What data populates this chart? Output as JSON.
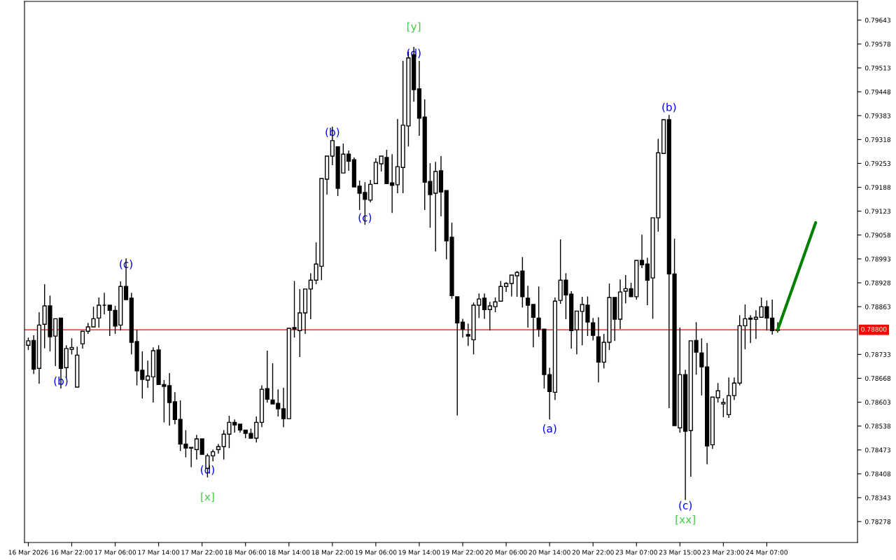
{
  "chart_data": {
    "type": "candlestick",
    "categories": [
      "16 Mar 2026",
      null,
      null,
      null,
      null,
      null,
      null,
      null,
      "16 Mar 22:00",
      null,
      null,
      null,
      null,
      null,
      null,
      null,
      "17 Mar 06:00",
      null,
      null,
      null,
      null,
      null,
      null,
      null,
      "17 Mar 14:00",
      null,
      null,
      null,
      null,
      null,
      null,
      null,
      "17 Mar 22:00",
      null,
      null,
      null,
      null,
      null,
      null,
      null,
      "18 Mar 06:00",
      null,
      null,
      null,
      null,
      null,
      null,
      null,
      "18 Mar 14:00",
      null,
      null,
      null,
      null,
      null,
      null,
      null,
      "18 Mar 22:00",
      null,
      null,
      null,
      null,
      null,
      null,
      null,
      "19 Mar 06:00",
      null,
      null,
      null,
      null,
      null,
      null,
      null,
      "19 Mar 14:00",
      null,
      null,
      null,
      null,
      null,
      null,
      null,
      "19 Mar 22:00",
      null,
      null,
      null,
      null,
      null,
      null,
      null,
      "20 Mar 06:00",
      null,
      null,
      null,
      null,
      null,
      null,
      null,
      "20 Mar 14:00",
      null,
      null,
      null,
      null,
      null,
      null,
      null,
      "20 Mar 22:00",
      null,
      null,
      null,
      null,
      null,
      null,
      null,
      "23 Mar 07:00",
      null,
      null,
      null,
      null,
      null,
      null,
      null,
      "23 Mar 15:00",
      null,
      null,
      null,
      null,
      null,
      null,
      null,
      "23 Mar 23:00",
      null,
      null,
      null,
      null,
      null,
      null,
      null,
      "24 Mar 07:00",
      null,
      null,
      null,
      null,
      null,
      null,
      null,
      null,
      null,
      null,
      null,
      null,
      null,
      null,
      null,
      null
    ],
    "ohlc": [
      [
        0.78758,
        0.78779,
        0.78745,
        0.7877
      ],
      [
        0.78771,
        0.78785,
        0.7868,
        0.78693
      ],
      [
        0.78695,
        0.78848,
        0.78653,
        0.78813
      ],
      [
        0.78815,
        0.78924,
        0.7875,
        0.78865
      ],
      [
        0.78865,
        0.78893,
        0.78741,
        0.78781
      ],
      [
        0.78783,
        0.78834,
        0.78701,
        0.7883
      ],
      [
        0.78832,
        0.78832,
        0.7864,
        0.78695
      ],
      [
        0.78697,
        0.78758,
        0.78668,
        0.78749
      ],
      [
        0.78747,
        0.78777,
        0.78733,
        0.78752
      ],
      [
        0.78644,
        0.78754,
        0.78644,
        0.78731
      ],
      [
        0.78762,
        0.78796,
        0.78749,
        0.78796
      ],
      [
        0.78796,
        0.78819,
        0.78789,
        0.78808
      ],
      [
        0.78808,
        0.78863,
        0.78806,
        0.7883
      ],
      [
        0.78832,
        0.78888,
        0.78806,
        0.78867
      ],
      [
        0.78867,
        0.78901,
        0.78842,
        0.78867
      ],
      [
        0.78867,
        0.78872,
        0.78783,
        0.78853
      ],
      [
        0.78853,
        0.78865,
        0.78789,
        0.7881
      ],
      [
        0.78813,
        0.78932,
        0.78798,
        0.78918
      ],
      [
        0.78918,
        0.78994,
        0.78878,
        0.78882
      ],
      [
        0.78886,
        0.78901,
        0.78733,
        0.78766
      ],
      [
        0.78768,
        0.788,
        0.78649,
        0.78688
      ],
      [
        0.7869,
        0.78741,
        0.78613,
        0.78665
      ],
      [
        0.78663,
        0.78716,
        0.78642,
        0.78674
      ],
      [
        0.78672,
        0.78752,
        0.78602,
        0.78743
      ],
      [
        0.78745,
        0.78758,
        0.78648,
        0.78651
      ],
      [
        0.78651,
        0.78663,
        0.78548,
        0.78646
      ],
      [
        0.78648,
        0.78682,
        0.78539,
        0.78602
      ],
      [
        0.78604,
        0.7863,
        0.78543,
        0.78556
      ],
      [
        0.78556,
        0.78608,
        0.7847,
        0.78489
      ],
      [
        0.78489,
        0.78527,
        0.78453,
        0.78478
      ],
      [
        0.78478,
        0.7848,
        0.78426,
        0.7848
      ],
      [
        0.78474,
        0.78514,
        0.78447,
        0.78503
      ],
      [
        0.78503,
        0.78508,
        0.78461,
        0.78461
      ],
      [
        0.78423,
        0.78463,
        0.78398,
        0.78457
      ],
      [
        0.78457,
        0.78474,
        0.78442,
        0.78468
      ],
      [
        0.78474,
        0.78489,
        0.78463,
        0.78482
      ],
      [
        0.78482,
        0.78527,
        0.78447,
        0.78516
      ],
      [
        0.78516,
        0.78566,
        0.78478,
        0.78548
      ],
      [
        0.78548,
        0.78556,
        0.7852,
        0.78541
      ],
      [
        0.78543,
        0.78548,
        0.7852,
        0.78527
      ],
      [
        0.78527,
        0.78527,
        0.78505,
        0.78518
      ],
      [
        0.78518,
        0.78531,
        0.78505,
        0.78505
      ],
      [
        0.78505,
        0.78564,
        0.78493,
        0.78548
      ],
      [
        0.78548,
        0.78649,
        0.78535,
        0.78638
      ],
      [
        0.7864,
        0.78743,
        0.78602,
        0.78611
      ],
      [
        0.78609,
        0.78709,
        0.78598,
        0.78598
      ],
      [
        0.786,
        0.78638,
        0.78564,
        0.78585
      ],
      [
        0.78585,
        0.78642,
        0.78535,
        0.78558
      ],
      [
        0.78558,
        0.78806,
        0.78558,
        0.78804
      ],
      [
        0.78806,
        0.78933,
        0.78779,
        0.78802
      ],
      [
        0.78798,
        0.78911,
        0.78726,
        0.78846
      ],
      [
        0.78846,
        0.78914,
        0.78789,
        0.78911
      ],
      [
        0.78911,
        0.78954,
        0.78829,
        0.78935
      ],
      [
        0.78935,
        0.79038,
        0.78924,
        0.78979
      ],
      [
        0.78973,
        0.79212,
        0.78935,
        0.79212
      ],
      [
        0.7921,
        0.79278,
        0.79168,
        0.79273
      ],
      [
        0.79273,
        0.79353,
        0.79248,
        0.79315
      ],
      [
        0.79298,
        0.79298,
        0.79164,
        0.79185
      ],
      [
        0.79227,
        0.79307,
        0.79227,
        0.79278
      ],
      [
        0.79278,
        0.79288,
        0.79233,
        0.79259
      ],
      [
        0.79263,
        0.79269,
        0.79189,
        0.79189
      ],
      [
        0.79191,
        0.79206,
        0.79126,
        0.79172
      ],
      [
        0.79174,
        0.79202,
        0.79086,
        0.79155
      ],
      [
        0.79153,
        0.79208,
        0.79147,
        0.79196
      ],
      [
        0.79198,
        0.79267,
        0.79198,
        0.79256
      ],
      [
        0.79252,
        0.79273,
        0.79231,
        0.79273
      ],
      [
        0.79269,
        0.7929,
        0.79198,
        0.79198
      ],
      [
        0.792,
        0.79278,
        0.79118,
        0.79193
      ],
      [
        0.79195,
        0.79374,
        0.79172,
        0.79244
      ],
      [
        0.79242,
        0.79532,
        0.79172,
        0.79357
      ],
      [
        0.79355,
        0.79557,
        0.79299,
        0.7954
      ],
      [
        0.79549,
        0.7957,
        0.79421,
        0.79454
      ],
      [
        0.79456,
        0.79532,
        0.79328,
        0.79376
      ],
      [
        0.79379,
        0.79427,
        0.79126,
        0.79202
      ],
      [
        0.79204,
        0.79254,
        0.79078,
        0.79168
      ],
      [
        0.79172,
        0.79257,
        0.79013,
        0.79231
      ],
      [
        0.79233,
        0.79273,
        0.79109,
        0.79175
      ],
      [
        0.79179,
        0.79179,
        0.78992,
        0.79042
      ],
      [
        0.79052,
        0.79092,
        0.78884,
        0.78893
      ],
      [
        0.7889,
        0.78891,
        0.78567,
        0.78819
      ],
      [
        0.78821,
        0.7883,
        0.78779,
        0.78802
      ],
      [
        0.78787,
        0.78817,
        0.78756,
        0.78783
      ],
      [
        0.78773,
        0.78874,
        0.78733,
        0.78867
      ],
      [
        0.78867,
        0.78899,
        0.78832,
        0.78884
      ],
      [
        0.78886,
        0.78899,
        0.7883,
        0.78855
      ],
      [
        0.78855,
        0.78876,
        0.78798,
        0.78865
      ],
      [
        0.78863,
        0.78888,
        0.78848,
        0.78876
      ],
      [
        0.78878,
        0.78933,
        0.78876,
        0.78918
      ],
      [
        0.78918,
        0.7893,
        0.78903,
        0.78926
      ],
      [
        0.78926,
        0.78953,
        0.78891,
        0.78949
      ],
      [
        0.78947,
        0.7896,
        0.7889,
        0.78956
      ],
      [
        0.7896,
        0.78998,
        0.78861,
        0.7889
      ],
      [
        0.78886,
        0.7892,
        0.78806,
        0.78867
      ],
      [
        0.78869,
        0.78871,
        0.78752,
        0.78834
      ],
      [
        0.78832,
        0.78918,
        0.78781,
        0.78802
      ],
      [
        0.78802,
        0.78802,
        0.7864,
        0.78678
      ],
      [
        0.78678,
        0.78697,
        0.78556,
        0.78632
      ],
      [
        0.7863,
        0.78888,
        0.78609,
        0.78878
      ],
      [
        0.7888,
        0.79046,
        0.78871,
        0.78935
      ],
      [
        0.78935,
        0.78954,
        0.78829,
        0.78895
      ],
      [
        0.78897,
        0.78905,
        0.78749,
        0.78798
      ],
      [
        0.788,
        0.78855,
        0.78733,
        0.78851
      ],
      [
        0.7885,
        0.7889,
        0.78758,
        0.78869
      ],
      [
        0.78867,
        0.78891,
        0.78783,
        0.78821
      ],
      [
        0.78819,
        0.78832,
        0.78771,
        0.78785
      ],
      [
        0.78781,
        0.78834,
        0.78657,
        0.78712
      ],
      [
        0.78712,
        0.78789,
        0.78695,
        0.78766
      ],
      [
        0.78766,
        0.78926,
        0.78745,
        0.78888
      ],
      [
        0.78888,
        0.78888,
        0.7877,
        0.78829
      ],
      [
        0.78829,
        0.78937,
        0.78802,
        0.78903
      ],
      [
        0.78905,
        0.78949,
        0.78872,
        0.78912
      ],
      [
        0.78912,
        0.78928,
        0.78888,
        0.7889
      ],
      [
        0.7889,
        0.78989,
        0.78882,
        0.78989
      ],
      [
        0.78989,
        0.79059,
        0.78968,
        0.78977
      ],
      [
        0.78979,
        0.78996,
        0.78867,
        0.78935
      ],
      [
        0.78941,
        0.79105,
        0.7883,
        0.79105
      ],
      [
        0.79105,
        0.7932,
        0.79067,
        0.79282
      ],
      [
        0.7928,
        0.79372,
        0.79277,
        0.79372
      ],
      [
        0.79372,
        0.79385,
        0.78587,
        0.78952
      ],
      [
        0.78952,
        0.79048,
        0.78539,
        0.78539
      ],
      [
        0.78533,
        0.78806,
        0.7852,
        0.78678
      ],
      [
        0.78678,
        0.78691,
        0.78337,
        0.78524
      ],
      [
        0.78526,
        0.7877,
        0.784,
        0.7877
      ],
      [
        0.78771,
        0.78821,
        0.78678,
        0.78739
      ],
      [
        0.78737,
        0.78777,
        0.78621,
        0.78699
      ],
      [
        0.78699,
        0.78764,
        0.78434,
        0.78484
      ],
      [
        0.78487,
        0.78621,
        0.78476,
        0.78617
      ],
      [
        0.78615,
        0.78655,
        0.78602,
        0.78634
      ],
      [
        0.78598,
        0.78613,
        0.78562,
        0.78602
      ],
      [
        0.78569,
        0.7867,
        0.7856,
        0.78621
      ],
      [
        0.78621,
        0.7867,
        0.78609,
        0.78655
      ],
      [
        0.78655,
        0.7884,
        0.78649,
        0.78811
      ],
      [
        0.78811,
        0.78869,
        0.78747,
        0.7883
      ],
      [
        0.78832,
        0.7884,
        0.78764,
        0.78829
      ],
      [
        0.78829,
        0.78853,
        0.78775,
        0.78834
      ],
      [
        0.78834,
        0.78888,
        0.78829,
        0.78863
      ],
      [
        0.78863,
        0.7888,
        0.78798,
        0.78832
      ],
      [
        0.78832,
        0.78882,
        0.78787,
        0.78798
      ],
      [
        0.78798,
        0.78821,
        0.78792,
        0.788
      ],
      null,
      null,
      null,
      null,
      null,
      null,
      null,
      null,
      null,
      null,
      null,
      null,
      null,
      null
    ],
    "series": [
      {
        "type": "line",
        "color": "#008000",
        "values": [
          null,
          null,
          null,
          null,
          null,
          null,
          null,
          null,
          null,
          null,
          null,
          null,
          null,
          null,
          null,
          null,
          null,
          null,
          null,
          null,
          null,
          null,
          null,
          null,
          null,
          null,
          null,
          null,
          null,
          null,
          null,
          null,
          null,
          null,
          null,
          null,
          null,
          null,
          null,
          null,
          null,
          null,
          null,
          null,
          null,
          null,
          null,
          null,
          null,
          null,
          null,
          null,
          null,
          null,
          null,
          null,
          null,
          null,
          null,
          null,
          null,
          null,
          null,
          null,
          null,
          null,
          null,
          null,
          null,
          null,
          null,
          null,
          null,
          null,
          null,
          null,
          null,
          null,
          null,
          null,
          null,
          null,
          null,
          null,
          null,
          null,
          null,
          null,
          null,
          null,
          null,
          null,
          null,
          null,
          null,
          null,
          null,
          null,
          null,
          null,
          null,
          null,
          null,
          null,
          null,
          null,
          null,
          null,
          null,
          null,
          null,
          null,
          null,
          null,
          null,
          null,
          null,
          null,
          null,
          null,
          null,
          null,
          null,
          null,
          null,
          null,
          null,
          null,
          null,
          null,
          null,
          null,
          null,
          null,
          null,
          null,
          null,
          null,
          0.788,
          null,
          null,
          null,
          null,
          null,
          null,
          0.79092,
          null,
          null,
          null,
          null,
          null,
          null,
          null
        ]
      }
    ],
    "ylim": [
      0.78221,
      0.79694
    ],
    "yticks": [
      0.79643,
      0.79578,
      0.79513,
      0.79448,
      0.79383,
      0.79318,
      0.79253,
      0.79188,
      0.79123,
      0.79058,
      0.78993,
      0.78928,
      0.78863,
      0.78733,
      0.78668,
      0.78603,
      0.78538,
      0.78473,
      0.78408,
      0.78343,
      0.78278
    ],
    "ref_lines": [
      {
        "axis": "y",
        "value": 0.788,
        "label": "0.78800",
        "color": "#ff0000"
      }
    ],
    "grid": false,
    "legend": false,
    "annotations": [
      "(b)",
      "(c)",
      "(d)",
      "[x]",
      "(b)",
      "(c)",
      "(d)",
      "[y]",
      "(a)",
      "(b)",
      "(c)",
      "[xx]"
    ]
  }
}
